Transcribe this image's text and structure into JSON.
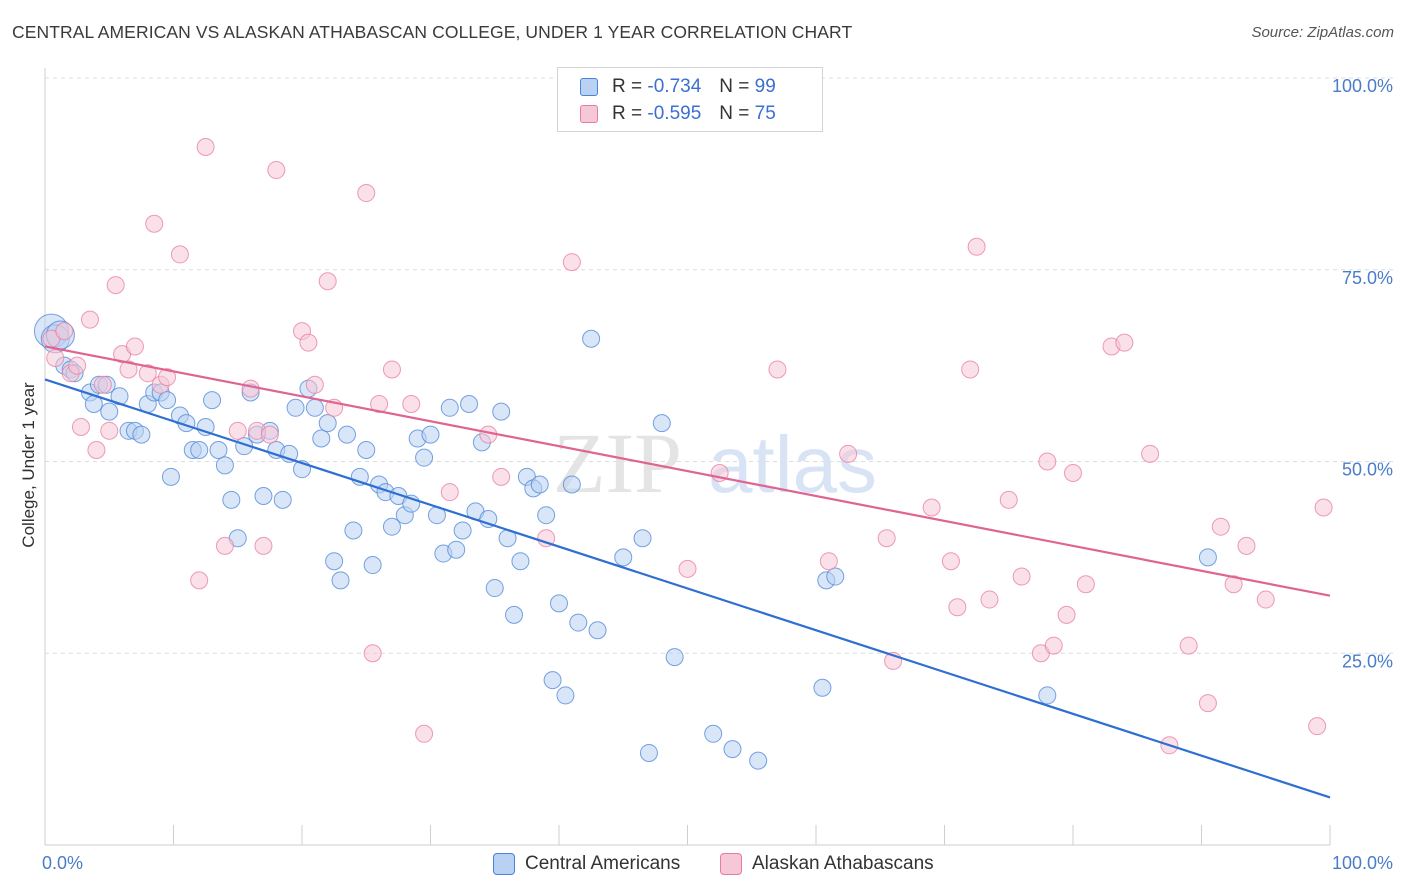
{
  "title": "CENTRAL AMERICAN VS ALASKAN ATHABASCAN COLLEGE, UNDER 1 YEAR CORRELATION CHART",
  "source": "Source: ZipAtlas.com",
  "watermark": {
    "zip": "ZIP",
    "atlas": "atlas"
  },
  "legend": {
    "r_label": "R =",
    "n_label": "N =",
    "rows": [
      {
        "r": "-0.734",
        "n": "99",
        "color": "#4a84d8"
      },
      {
        "r": "-0.595",
        "n": "75",
        "color": "#e87ba1"
      }
    ]
  },
  "bottom_legend": [
    "Central Americans",
    "Alaskan Athabascans"
  ],
  "chart_data": {
    "type": "scatter",
    "ylabel": "College, Under 1 year",
    "xlim": [
      0,
      100
    ],
    "ylim": [
      0,
      100
    ],
    "x_tick_labels": [
      "0.0%",
      "100.0%"
    ],
    "y_ticks": [
      {
        "value": 25,
        "label": "25.0%"
      },
      {
        "value": 50,
        "label": "50.0%"
      },
      {
        "value": 75,
        "label": "75.0%"
      },
      {
        "value": 100,
        "label": "100.0%"
      }
    ],
    "grid": "horizontal dashed",
    "series": [
      {
        "name": "Central Americans",
        "color": "#4a84d8",
        "fill": "#b9d1f3",
        "trend": {
          "x": [
            0,
            100
          ],
          "y": [
            60.7,
            6.2
          ]
        },
        "points": [
          [
            0.5,
            67.0
          ],
          [
            0.8,
            66.0
          ],
          [
            1.2,
            66.5
          ],
          [
            1.5,
            62.5
          ],
          [
            2.0,
            62.0
          ],
          [
            2.3,
            61.5
          ],
          [
            3.5,
            59.0
          ],
          [
            3.8,
            57.5
          ],
          [
            4.2,
            60.0
          ],
          [
            4.8,
            60.0
          ],
          [
            5.0,
            56.5
          ],
          [
            5.8,
            58.5
          ],
          [
            6.5,
            54.0
          ],
          [
            7.0,
            54.0
          ],
          [
            7.5,
            53.5
          ],
          [
            8.0,
            57.5
          ],
          [
            8.5,
            59.0
          ],
          [
            9.0,
            59.0
          ],
          [
            9.5,
            58.0
          ],
          [
            9.8,
            48.0
          ],
          [
            10.5,
            56.0
          ],
          [
            11.0,
            55.0
          ],
          [
            11.5,
            51.5
          ],
          [
            12.0,
            51.5
          ],
          [
            12.5,
            54.5
          ],
          [
            13.0,
            58.0
          ],
          [
            13.5,
            51.5
          ],
          [
            14.0,
            49.5
          ],
          [
            14.5,
            45.0
          ],
          [
            15.0,
            40.0
          ],
          [
            15.5,
            52.0
          ],
          [
            16.0,
            59.0
          ],
          [
            16.5,
            53.5
          ],
          [
            17.0,
            45.5
          ],
          [
            17.5,
            54.0
          ],
          [
            18.0,
            51.5
          ],
          [
            18.5,
            45.0
          ],
          [
            19.0,
            51.0
          ],
          [
            19.5,
            57.0
          ],
          [
            20.0,
            49.0
          ],
          [
            20.5,
            59.5
          ],
          [
            21.0,
            57.0
          ],
          [
            21.5,
            53.0
          ],
          [
            22.0,
            55.0
          ],
          [
            22.5,
            37.0
          ],
          [
            23.0,
            34.5
          ],
          [
            23.5,
            53.5
          ],
          [
            24.0,
            41.0
          ],
          [
            24.5,
            48.0
          ],
          [
            25.0,
            51.5
          ],
          [
            25.5,
            36.5
          ],
          [
            26.0,
            47.0
          ],
          [
            26.5,
            46.0
          ],
          [
            27.0,
            41.5
          ],
          [
            27.5,
            45.5
          ],
          [
            28.0,
            43.0
          ],
          [
            28.5,
            44.5
          ],
          [
            29.0,
            53.0
          ],
          [
            29.5,
            50.5
          ],
          [
            30.0,
            53.5
          ],
          [
            30.5,
            43.0
          ],
          [
            31.0,
            38.0
          ],
          [
            31.5,
            57.0
          ],
          [
            32.0,
            38.5
          ],
          [
            32.5,
            41.0
          ],
          [
            33.0,
            57.5
          ],
          [
            33.5,
            43.5
          ],
          [
            34.0,
            52.5
          ],
          [
            34.5,
            42.5
          ],
          [
            35.0,
            33.5
          ],
          [
            35.5,
            56.5
          ],
          [
            36.0,
            40.0
          ],
          [
            36.5,
            30.0
          ],
          [
            37.0,
            37.0
          ],
          [
            37.5,
            48.0
          ],
          [
            38.0,
            46.5
          ],
          [
            38.5,
            47.0
          ],
          [
            39.0,
            43.0
          ],
          [
            39.5,
            21.5
          ],
          [
            40.0,
            31.5
          ],
          [
            40.5,
            19.5
          ],
          [
            41.0,
            47.0
          ],
          [
            41.5,
            29.0
          ],
          [
            42.5,
            66.0
          ],
          [
            43.0,
            28.0
          ],
          [
            45.0,
            37.5
          ],
          [
            46.5,
            40.0
          ],
          [
            47.0,
            12.0
          ],
          [
            48.0,
            55.0
          ],
          [
            49.0,
            24.5
          ],
          [
            52.0,
            14.5
          ],
          [
            53.5,
            12.5
          ],
          [
            55.5,
            11.0
          ],
          [
            60.5,
            20.5
          ],
          [
            60.8,
            34.5
          ],
          [
            61.5,
            35.0
          ],
          [
            78.0,
            19.5
          ],
          [
            90.5,
            37.5
          ]
        ]
      },
      {
        "name": "Alaskan Athabascans",
        "color": "#e87ba1",
        "fill": "#f6c7d6",
        "trend": {
          "x": [
            0,
            100
          ],
          "y": [
            65.0,
            32.5
          ]
        },
        "points": [
          [
            0.5,
            66.0
          ],
          [
            0.8,
            63.5
          ],
          [
            1.5,
            67.0
          ],
          [
            2.0,
            61.5
          ],
          [
            2.5,
            62.5
          ],
          [
            2.8,
            54.5
          ],
          [
            3.5,
            68.5
          ],
          [
            4.0,
            51.5
          ],
          [
            4.5,
            60.0
          ],
          [
            5.0,
            54.0
          ],
          [
            5.5,
            73.0
          ],
          [
            6.0,
            64.0
          ],
          [
            6.5,
            62.0
          ],
          [
            7.0,
            65.0
          ],
          [
            8.0,
            61.5
          ],
          [
            8.5,
            81.0
          ],
          [
            9.0,
            60.0
          ],
          [
            9.5,
            61.0
          ],
          [
            10.5,
            77.0
          ],
          [
            12.0,
            34.5
          ],
          [
            12.5,
            91.0
          ],
          [
            14.0,
            39.0
          ],
          [
            15.0,
            54.0
          ],
          [
            16.0,
            59.5
          ],
          [
            16.5,
            54.0
          ],
          [
            17.0,
            39.0
          ],
          [
            17.5,
            53.5
          ],
          [
            18.0,
            88.0
          ],
          [
            20.0,
            67.0
          ],
          [
            20.5,
            65.5
          ],
          [
            21.0,
            60.0
          ],
          [
            22.0,
            73.5
          ],
          [
            22.5,
            57.0
          ],
          [
            25.0,
            85.0
          ],
          [
            25.5,
            25.0
          ],
          [
            26.0,
            57.5
          ],
          [
            27.0,
            62.0
          ],
          [
            28.5,
            57.5
          ],
          [
            29.5,
            14.5
          ],
          [
            31.5,
            46.0
          ],
          [
            34.5,
            53.5
          ],
          [
            35.5,
            48.0
          ],
          [
            39.0,
            40.0
          ],
          [
            41.0,
            76.0
          ],
          [
            50.0,
            36.0
          ],
          [
            52.5,
            48.5
          ],
          [
            57.0,
            62.0
          ],
          [
            61.0,
            37.0
          ],
          [
            62.5,
            51.0
          ],
          [
            65.5,
            40.0
          ],
          [
            66.0,
            24.0
          ],
          [
            69.0,
            44.0
          ],
          [
            70.5,
            37.0
          ],
          [
            71.0,
            31.0
          ],
          [
            72.0,
            62.0
          ],
          [
            72.5,
            78.0
          ],
          [
            73.5,
            32.0
          ],
          [
            75.0,
            45.0
          ],
          [
            76.0,
            35.0
          ],
          [
            77.5,
            25.0
          ],
          [
            78.0,
            50.0
          ],
          [
            78.5,
            26.0
          ],
          [
            79.5,
            30.0
          ],
          [
            80.0,
            48.5
          ],
          [
            81.0,
            34.0
          ],
          [
            83.0,
            65.0
          ],
          [
            84.0,
            65.5
          ],
          [
            86.0,
            51.0
          ],
          [
            87.5,
            13.0
          ],
          [
            89.0,
            26.0
          ],
          [
            90.5,
            18.5
          ],
          [
            91.5,
            41.5
          ],
          [
            92.5,
            34.0
          ],
          [
            93.5,
            39.0
          ],
          [
            95.0,
            32.0
          ],
          [
            99.0,
            15.5
          ],
          [
            99.5,
            44.0
          ]
        ]
      }
    ]
  }
}
